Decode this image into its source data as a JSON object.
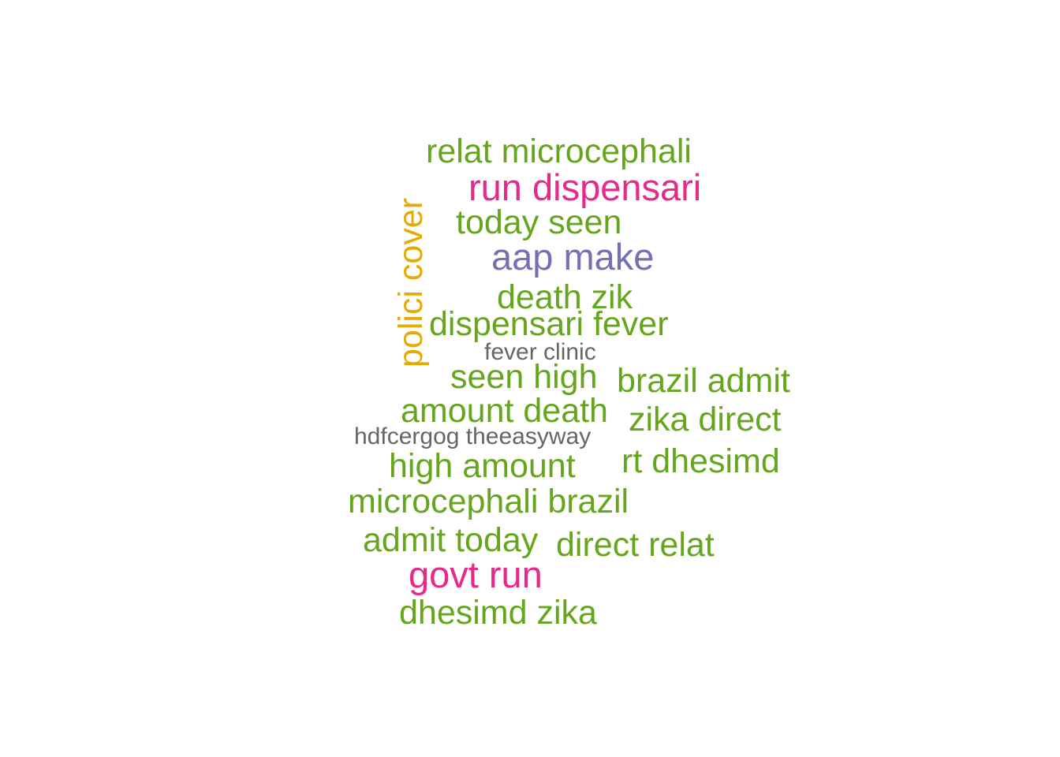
{
  "word_cloud": {
    "words": [
      {
        "text": "relat microcephali",
        "color": "#66a61e"
      },
      {
        "text": "run dispensari",
        "color": "#e7298a"
      },
      {
        "text": "today seen",
        "color": "#66a61e"
      },
      {
        "text": "aap make",
        "color": "#7570b3"
      },
      {
        "text": "death zik",
        "color": "#66a61e"
      },
      {
        "text": "dispensari fever",
        "color": "#66a61e"
      },
      {
        "text": "fever clinic",
        "color": "#666666"
      },
      {
        "text": "seen high",
        "color": "#66a61e"
      },
      {
        "text": "brazil admit",
        "color": "#66a61e"
      },
      {
        "text": "amount death",
        "color": "#66a61e"
      },
      {
        "text": "zika direct",
        "color": "#66a61e"
      },
      {
        "text": "hdfcergog theeasyway",
        "color": "#666666"
      },
      {
        "text": "rt dhesimd",
        "color": "#66a61e"
      },
      {
        "text": "high amount",
        "color": "#66a61e"
      },
      {
        "text": "microcephali brazil",
        "color": "#66a61e"
      },
      {
        "text": "admit today",
        "color": "#66a61e"
      },
      {
        "text": "direct relat",
        "color": "#66a61e"
      },
      {
        "text": "govt run",
        "color": "#e7298a"
      },
      {
        "text": "dhesimd zika",
        "color": "#66a61e"
      },
      {
        "text": "polici cover",
        "color": "#e6ab02",
        "orientation": "vertical"
      }
    ]
  }
}
